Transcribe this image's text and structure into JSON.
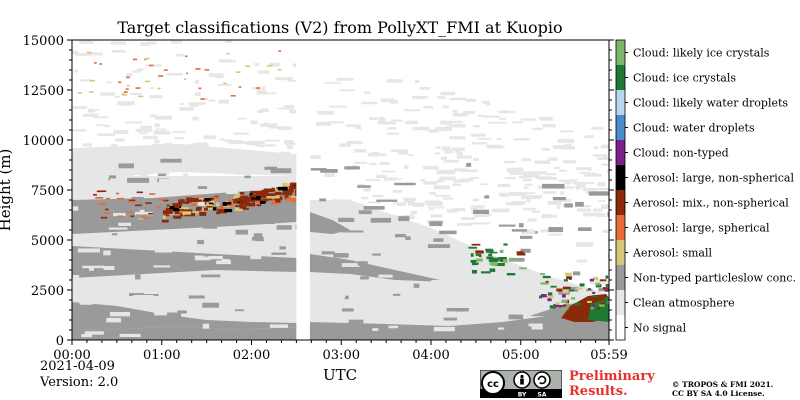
{
  "chart_data": {
    "type": "heatmap",
    "title": "Target classifications (V2) from PollyXT_FMI at Kuopio",
    "xlabel": "UTC",
    "ylabel": "Height (m)",
    "x_ticks": [
      "00:00",
      "01:00",
      "02:00",
      "03:00",
      "04:00",
      "05:00",
      "05:59"
    ],
    "x_tick_hours": [
      0,
      1,
      2,
      3,
      4,
      5,
      5.983
    ],
    "xlim_hours": [
      0,
      5.983
    ],
    "y_ticks": [
      "0",
      "2500",
      "5000",
      "7500",
      "10000",
      "12500",
      "15000"
    ],
    "y_tick_values": [
      0,
      2500,
      5000,
      7500,
      10000,
      12500,
      15000
    ],
    "ylim": [
      0,
      15000
    ],
    "data_gap_hours": [
      2.5,
      2.65
    ],
    "legend_position": "right",
    "classes": [
      {
        "label": "No signal",
        "color": "#ffffff"
      },
      {
        "label": "Clean atmosphere",
        "color": "#e6e6e6"
      },
      {
        "label": "Non-typed particleslow conc.",
        "color": "#9a9a9a"
      },
      {
        "label": "Aerosol: small",
        "color": "#d8c879"
      },
      {
        "label": "Aerosol: large, spherical",
        "color": "#ea6a3a"
      },
      {
        "label": "Aerosol: mix., non-spherical",
        "color": "#8a2a0a"
      },
      {
        "label": "Aerosol: large, non-spherical",
        "color": "#000000"
      },
      {
        "label": "Cloud: non-typed",
        "color": "#7e1e8c"
      },
      {
        "label": "Cloud: water droplets",
        "color": "#4a8cc8"
      },
      {
        "label": "Cloud: likely water droplets",
        "color": "#b8d8f0"
      },
      {
        "label": "Cloud: ice crystals",
        "color": "#1e7a32"
      },
      {
        "label": "Cloud: likely ice crystals",
        "color": "#7db86a"
      }
    ]
  },
  "footer": {
    "date": "2021-04-09",
    "version": "Version: 2.0",
    "preliminary_line1": "Preliminary",
    "preliminary_line2": "Results.",
    "copyright_line1": "© TROPOS & FMI 2021.",
    "copyright_line2": "CC BY SA 4.0 License.",
    "cc_by": "BY",
    "cc_sa": "SA"
  }
}
